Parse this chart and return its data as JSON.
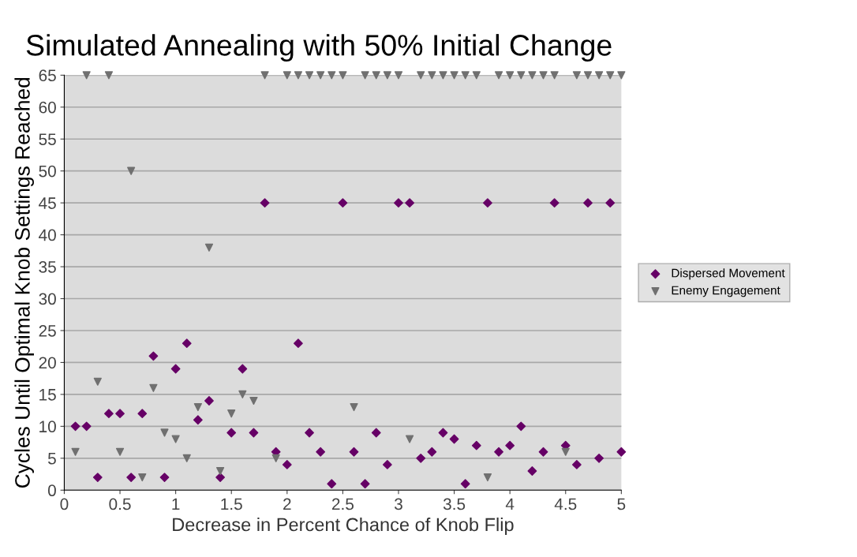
{
  "chart_data": {
    "type": "scatter",
    "title": "Simulated Annealing with 50% Initial Change",
    "xlabel": "Decrease in Percent Chance of Knob Flip",
    "ylabel": "Cycles Until Optimal Knob Settings Reached",
    "x": [
      0.1,
      0.2,
      0.3,
      0.4,
      0.5,
      0.6,
      0.7,
      0.8,
      0.9,
      1.0,
      1.1,
      1.2,
      1.3,
      1.4,
      1.5,
      1.6,
      1.7,
      1.8,
      1.9,
      2.0,
      2.1,
      2.2,
      2.3,
      2.4,
      2.5,
      2.6,
      2.7,
      2.8,
      2.9,
      3.0,
      3.1,
      3.2,
      3.3,
      3.4,
      3.5,
      3.6,
      3.7,
      3.8,
      3.9,
      4.0,
      4.1,
      4.2,
      4.3,
      4.4,
      4.5,
      4.6,
      4.7,
      4.8,
      4.9,
      5.0
    ],
    "series": [
      {
        "name": "Dispersed Movement",
        "color": "#660066",
        "marker": "diamond",
        "values": [
          10,
          10,
          2,
          12,
          12,
          2,
          12,
          21,
          2,
          19,
          23,
          11,
          14,
          2,
          9,
          19,
          9,
          45,
          6,
          4,
          23,
          9,
          6,
          1,
          45,
          6,
          1,
          9,
          4,
          45,
          45,
          5,
          6,
          9,
          8,
          1,
          7,
          45,
          6,
          7,
          10,
          3,
          6,
          45,
          7,
          4,
          45,
          5,
          45,
          6
        ]
      },
      {
        "name": "Enemy Engagement",
        "color": "#707070",
        "marker": "triangle",
        "values": [
          6,
          65,
          17,
          65,
          6,
          50,
          2,
          16,
          9,
          8,
          5,
          13,
          38,
          3,
          12,
          15,
          14,
          65,
          5,
          65,
          65,
          65,
          65,
          65,
          65,
          13,
          65,
          65,
          65,
          65,
          8,
          65,
          65,
          65,
          65,
          65,
          65,
          2,
          65,
          65,
          65,
          65,
          65,
          65,
          6,
          65,
          65,
          65,
          65,
          65
        ]
      }
    ],
    "xlim": [
      0,
      5
    ],
    "xticks": [
      0,
      0.5,
      1,
      1.5,
      2,
      2.5,
      3,
      3.5,
      4,
      4.5,
      5
    ],
    "ylim": [
      0,
      65
    ],
    "yticks": [
      0,
      5,
      10,
      15,
      20,
      25,
      30,
      35,
      40,
      45,
      50,
      55,
      60,
      65
    ],
    "grid": "y",
    "legend": "right"
  }
}
